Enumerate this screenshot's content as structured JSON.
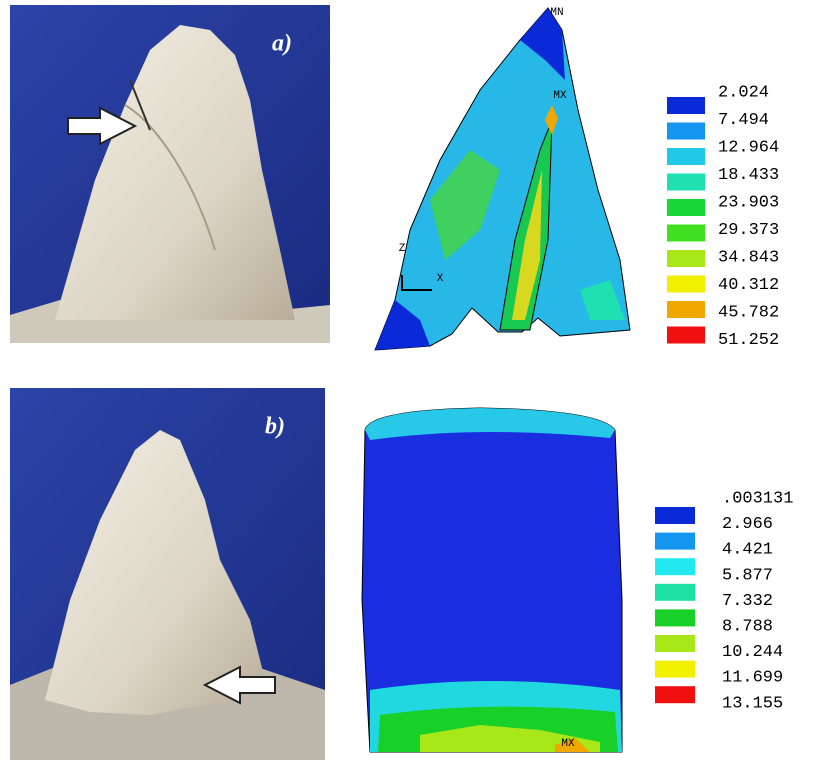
{
  "panels": [
    {
      "label": "a)",
      "annotations": {
        "min": "MN",
        "max": "MX",
        "axis_z": "Z",
        "axis_x": "X"
      },
      "legend": {
        "labels": [
          "2.024",
          "7.494",
          "12.964",
          "18.433",
          "23.903",
          "29.373",
          "34.843",
          "40.312",
          "45.782",
          "51.252"
        ],
        "colors": [
          "#0a2ad8",
          "#1496f0",
          "#22c8e8",
          "#1ee0b0",
          "#18d838",
          "#40e020",
          "#a8e818",
          "#f0f000",
          "#f0a800",
          "#f01010"
        ]
      }
    },
    {
      "label": "b)",
      "annotations": {
        "max": "MX"
      },
      "legend": {
        "labels": [
          ".003131",
          "2.966",
          "4.421",
          "5.877",
          "7.332",
          "8.788",
          "10.244",
          "11.699",
          "13.155"
        ],
        "colors": [
          "#0a2ad8",
          "#1496f0",
          "#22e8f0",
          "#1ee0a0",
          "#18d028",
          "#a8e818",
          "#f0f000",
          "#f01010"
        ]
      }
    }
  ]
}
